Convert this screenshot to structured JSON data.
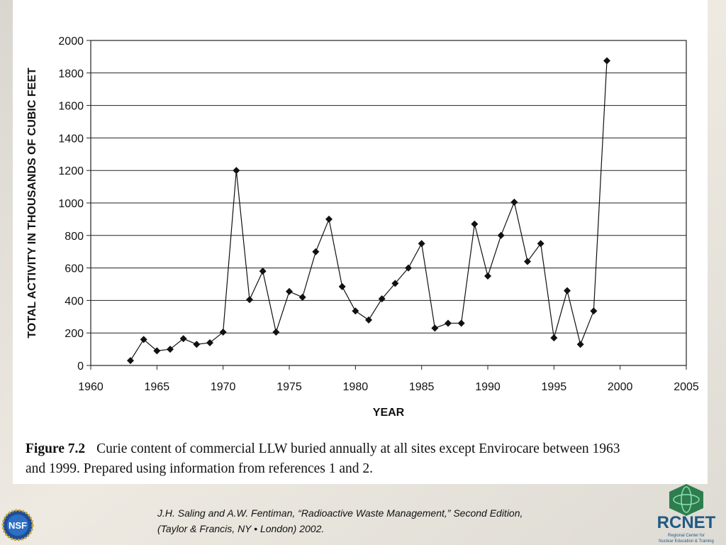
{
  "chart_data": {
    "type": "line",
    "x": [
      1963,
      1964,
      1965,
      1966,
      1967,
      1968,
      1969,
      1970,
      1971,
      1972,
      1973,
      1974,
      1975,
      1976,
      1977,
      1978,
      1979,
      1980,
      1981,
      1982,
      1983,
      1984,
      1985,
      1986,
      1987,
      1988,
      1989,
      1990,
      1991,
      1992,
      1993,
      1994,
      1995,
      1996,
      1997,
      1998,
      1999
    ],
    "values": [
      30,
      160,
      90,
      100,
      165,
      130,
      140,
      205,
      1200,
      405,
      580,
      205,
      455,
      420,
      700,
      900,
      485,
      335,
      280,
      410,
      505,
      600,
      750,
      230,
      260,
      260,
      870,
      550,
      800,
      1005,
      640,
      750,
      170,
      460,
      130,
      335,
      1875
    ],
    "color": "#111111",
    "xlabel": "YEAR",
    "ylabel": "TOTAL ACTIVITY IN THOUSANDS OF CUBIC FEET",
    "xlim": [
      1960,
      2005
    ],
    "xticks": [
      1960,
      1965,
      1970,
      1975,
      1980,
      1985,
      1990,
      1995,
      2000,
      2005
    ],
    "ylim": [
      0,
      2000
    ],
    "yticks": [
      0,
      200,
      400,
      600,
      800,
      1000,
      1200,
      1400,
      1600,
      1800,
      2000
    ],
    "grid": true
  },
  "caption": {
    "label": "Figure 7.2",
    "lines": [
      "Curie content of commercial LLW buried annually at all sites except Envirocare between 1963",
      "and 1999. Prepared using information from references 1 and 2."
    ]
  },
  "citation": [
    "J.H. Saling and A.W. Fentiman, “Radioactive Waste Management,” Second Edition,",
    "(Taylor & Francis, NY • London) 2002."
  ],
  "logos": {
    "left": "NSF",
    "right": "RCNET",
    "right_subtitle": [
      "Regional Center for",
      "Nuclear Education & Training"
    ]
  }
}
